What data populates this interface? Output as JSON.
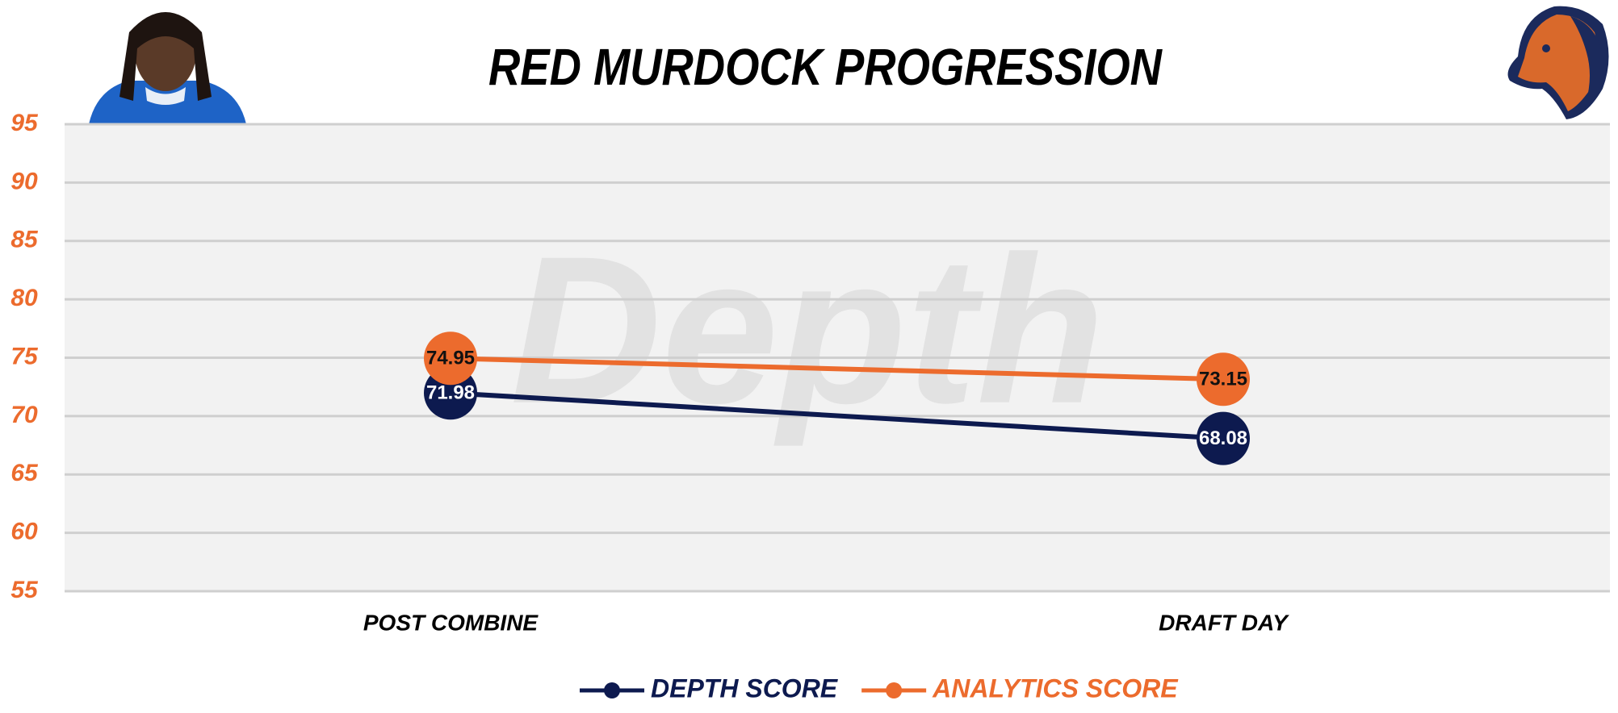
{
  "chart_data": {
    "type": "line",
    "title": "RED MURDOCK PROGRESSION",
    "watermark": "Depth",
    "categories": [
      "POST COMBINE",
      "DRAFT DAY"
    ],
    "series": [
      {
        "name": "DEPTH SCORE",
        "color": "#0d1a4f",
        "label_color": "#ffffff",
        "values": [
          71.98,
          68.08
        ]
      },
      {
        "name": "ANALYTICS SCORE",
        "color": "#ec6b2d",
        "label_color": "#111111",
        "values": [
          74.95,
          73.15
        ]
      }
    ],
    "ylim": [
      55,
      95
    ],
    "yticks": [
      55,
      60,
      65,
      70,
      75,
      80,
      85,
      90,
      95
    ],
    "grid": true,
    "tick_color": "#ec6b2d",
    "plot_background": "#f2f2f2",
    "legend": "bottom"
  }
}
